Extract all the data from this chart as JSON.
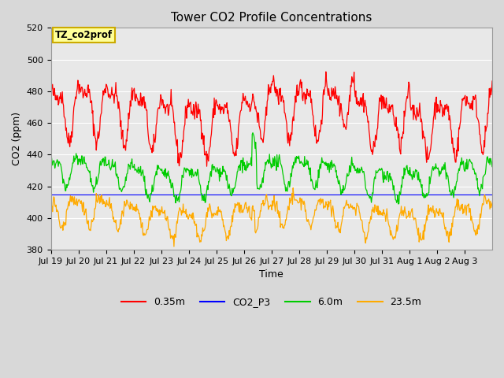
{
  "title": "Tower CO2 Profile Concentrations",
  "xlabel": "Time",
  "ylabel": "CO2 (ppm)",
  "ylim": [
    380,
    520
  ],
  "xlim_days": 16,
  "annotation_text": "TZ_co2prof",
  "annotation_bg": "#ffff99",
  "annotation_border": "#ccaa00",
  "fig_bg": "#d8d8d8",
  "plot_bg": "#e8e8e8",
  "grid_color": "#ffffff",
  "tick_fontsize": 8,
  "title_fontsize": 11,
  "xtick_labels": [
    "Jul 19",
    "Jul 20",
    "Jul 21",
    "Jul 22",
    "Jul 23",
    "Jul 24",
    "Jul 25",
    "Jul 26",
    "Jul 27",
    "Jul 28",
    "Jul 29",
    "Jul 30",
    "Jul 31",
    "Aug 1",
    "Aug 2",
    "Aug 3"
  ],
  "red_base": 465,
  "red_amp": 15,
  "red_noise": 3,
  "green_base": 427,
  "green_amp": 8,
  "green_noise": 2,
  "orange_base": 402,
  "orange_amp": 8,
  "orange_noise": 2,
  "colors": {
    "red": "#ff0000",
    "blue": "#0000ff",
    "green": "#00cc00",
    "orange": "#ffaa00"
  }
}
